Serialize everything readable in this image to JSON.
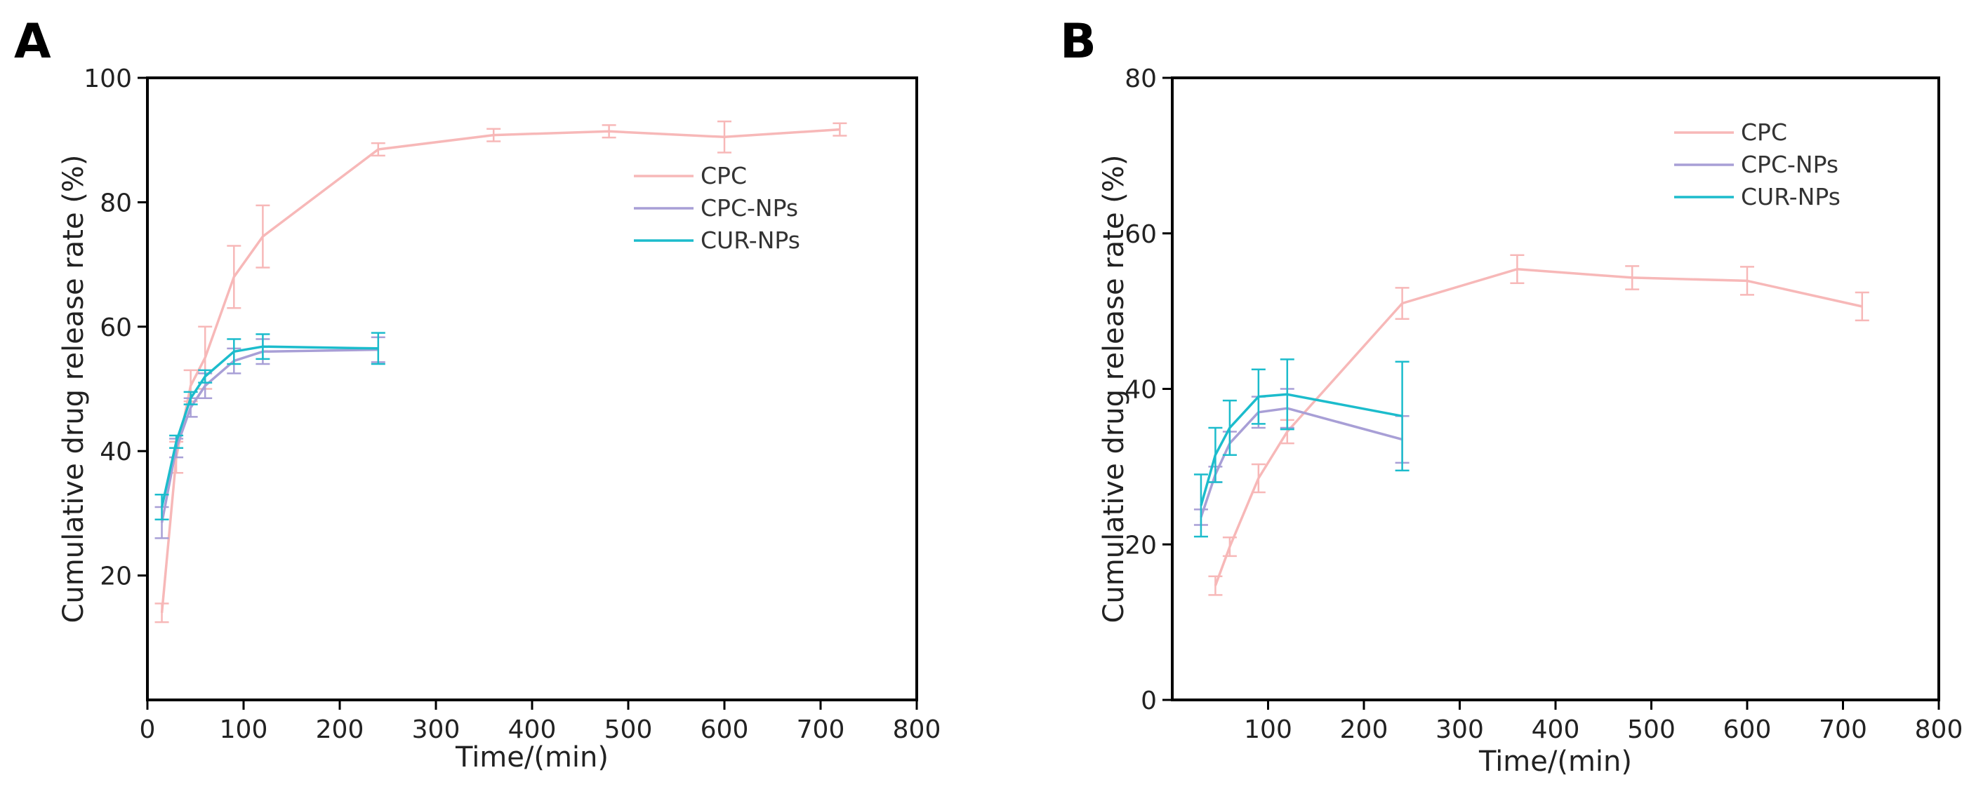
{
  "chart_data": [
    {
      "panel": "A",
      "type": "line",
      "title": "",
      "xlabel": "Time/(min)",
      "ylabel": "Cumulative drug release rate (%)",
      "xlim": [
        0,
        800
      ],
      "ylim": [
        0,
        100
      ],
      "xticks": [
        0,
        100,
        200,
        300,
        400,
        500,
        600,
        700,
        800
      ],
      "yticks": [
        20,
        40,
        60,
        80,
        100
      ],
      "legend_position": "top-right",
      "series": [
        {
          "name": "CPC",
          "color": "#f7b8b8",
          "x": [
            15,
            30,
            45,
            60,
            90,
            120,
            240,
            360,
            480,
            600,
            720
          ],
          "y": [
            14,
            39,
            50.5,
            55,
            68,
            74.5,
            88.5,
            90.8,
            91.4,
            90.5,
            91.7
          ],
          "err": [
            1.5,
            2.5,
            2.5,
            5,
            5,
            5,
            1,
            1,
            1,
            2.5,
            1
          ]
        },
        {
          "name": "CPC-NPs",
          "color": "#a89fd6",
          "x": [
            15,
            30,
            45,
            60,
            90,
            120,
            240
          ],
          "y": [
            28.5,
            40.5,
            47,
            50.5,
            54.5,
            56,
            56.3
          ],
          "err": [
            2.5,
            1.5,
            1.5,
            2,
            2,
            2,
            2
          ]
        },
        {
          "name": "CUR-NPs",
          "color": "#1cbccc",
          "x": [
            15,
            30,
            45,
            60,
            90,
            120,
            240
          ],
          "y": [
            31,
            41.5,
            48.5,
            52,
            56,
            56.8,
            56.5
          ],
          "err": [
            2,
            1,
            1,
            1,
            2,
            2,
            2.5
          ]
        }
      ]
    },
    {
      "panel": "B",
      "type": "line",
      "title": "",
      "xlabel": "Time/(min)",
      "ylabel": "Cumulative drug release rate (%)",
      "xlim": [
        0,
        800
      ],
      "ylim": [
        0,
        80
      ],
      "xticks": [
        100,
        200,
        300,
        400,
        500,
        600,
        700,
        800
      ],
      "yticks": [
        0,
        20,
        40,
        60,
        80
      ],
      "legend_position": "top-right",
      "series": [
        {
          "name": "CPC",
          "color": "#f7b8b8",
          "x": [
            45,
            60,
            90,
            120,
            240,
            360,
            480,
            600,
            720
          ],
          "y": [
            14.7,
            19.7,
            28.5,
            34.5,
            51,
            55.4,
            54.3,
            53.9,
            50.6
          ],
          "err": [
            1.2,
            1.2,
            1.8,
            1.5,
            2,
            1.8,
            1.5,
            1.8,
            1.8
          ]
        },
        {
          "name": "CPC-NPs",
          "color": "#a89fd6",
          "x": [
            30,
            45,
            60,
            90,
            120,
            240
          ],
          "y": [
            23.5,
            29,
            33,
            37,
            37.5,
            33.5
          ],
          "err": [
            1,
            1,
            1.5,
            2,
            2.5,
            3
          ]
        },
        {
          "name": "CUR-NPs",
          "color": "#1cbccc",
          "x": [
            30,
            45,
            60,
            90,
            120,
            240
          ],
          "y": [
            25,
            31.5,
            35,
            39,
            39.3,
            36.5
          ],
          "err": [
            4,
            3.5,
            3.5,
            3.5,
            4.5,
            7
          ]
        }
      ]
    }
  ]
}
